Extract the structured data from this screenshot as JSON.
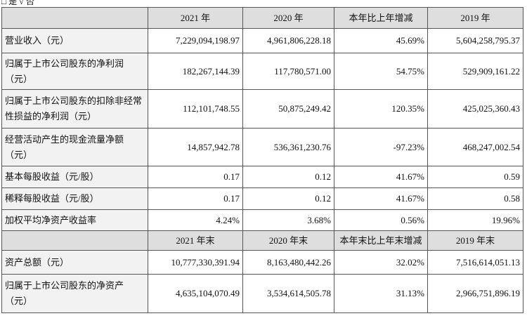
{
  "note": "□ 是 √ 否",
  "table": {
    "header": [
      "",
      "2021 年",
      "2020 年",
      "本年比上年增减",
      "2019 年"
    ],
    "rows": [
      [
        "营业收入（元）",
        "7,229,094,198.97",
        "4,961,806,228.18",
        "45.69%",
        "5,604,258,795.37"
      ],
      [
        "归属于上市公司股东的净利润（元）",
        "182,267,144.39",
        "117,780,571.00",
        "54.75%",
        "529,909,161.22"
      ],
      [
        "归属于上市公司股东的扣除非经常性损益的净利润（元）",
        "112,101,748.55",
        "50,875,249.42",
        "120.35%",
        "425,025,360.43"
      ],
      [
        "经营活动产生的现金流量净额（元）",
        "14,857,942.78",
        "536,361,230.76",
        "-97.23%",
        "468,247,002.54"
      ],
      [
        "基本每股收益（元/股）",
        "0.17",
        "0.12",
        "41.67%",
        "0.59"
      ],
      [
        "稀释每股收益（元/股）",
        "0.17",
        "0.12",
        "41.67%",
        "0.58"
      ],
      [
        "加权平均净资产收益率",
        "4.24%",
        "3.68%",
        "0.56%",
        "19.96%"
      ]
    ],
    "header2": [
      "",
      "2021 年末",
      "2020 年末",
      "本年末比上年末增减",
      "2019 年末"
    ],
    "rows2": [
      [
        "资产总额（元）",
        "10,777,330,391.94",
        "8,163,480,442.26",
        "32.02%",
        "7,516,614,051.13"
      ],
      [
        "归属于上市公司股东的净资产（元）",
        "4,635,104,070.49",
        "3,534,614,505.78",
        "31.13%",
        "2,966,751,896.19"
      ]
    ]
  }
}
